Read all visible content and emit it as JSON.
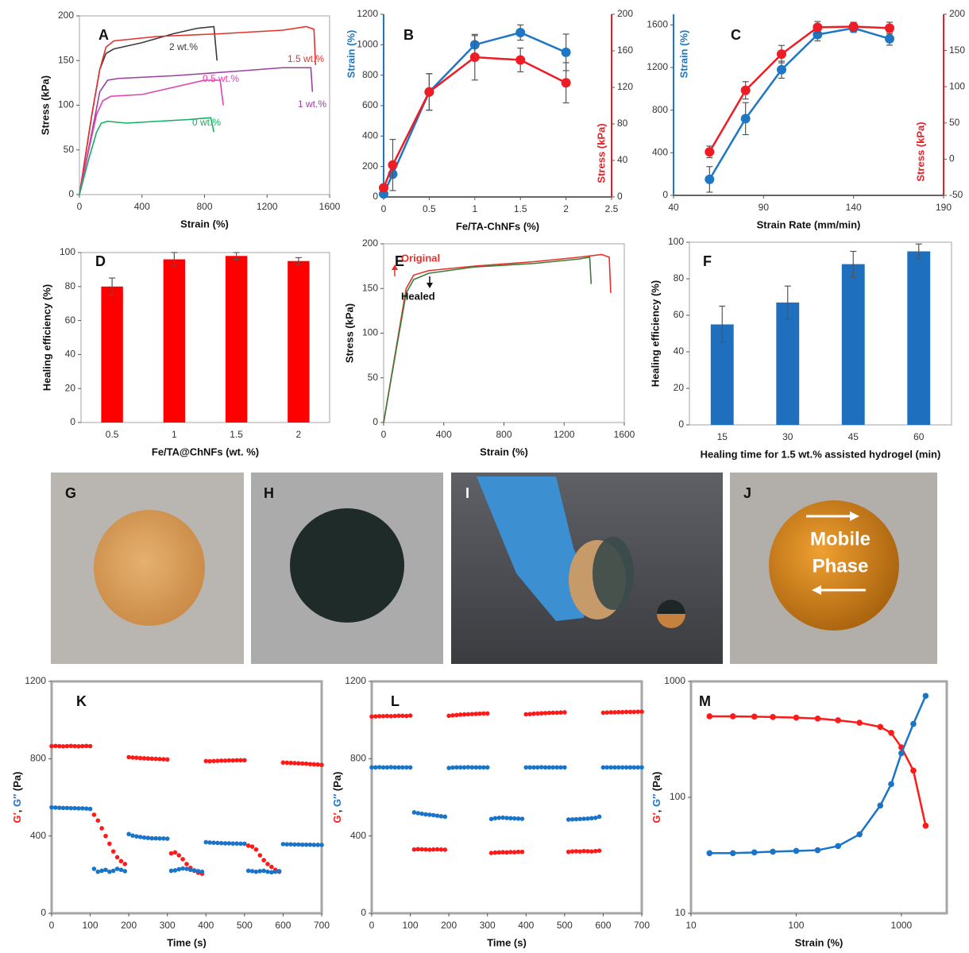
{
  "chart_data": [
    {
      "type": "line",
      "panel": "A",
      "xlabel": "Strain (%)",
      "ylabel": "Stress (kPa)",
      "xlim": [
        0,
        1600
      ],
      "xticks": [
        0,
        400,
        800,
        1200,
        1600
      ],
      "ylim": [
        0,
        200
      ],
      "yticks": [
        0,
        50,
        100,
        150,
        200
      ],
      "series": [
        {
          "name": "2 wt.%",
          "color": "#3a3a3a",
          "x": [
            0,
            80,
            130,
            170,
            220,
            400,
            600,
            750,
            860,
            880
          ],
          "values": [
            0,
            90,
            140,
            158,
            163,
            170,
            180,
            186,
            188,
            150
          ]
        },
        {
          "name": "1.5 wt.%",
          "color": "#e8302a",
          "x": [
            0,
            80,
            130,
            170,
            220,
            500,
            900,
            1300,
            1450,
            1500,
            1510
          ],
          "values": [
            0,
            90,
            140,
            165,
            172,
            177,
            180,
            184,
            188,
            185,
            145
          ]
        },
        {
          "name": "1 wt.%",
          "color": "#9b3fa0",
          "x": [
            0,
            80,
            130,
            180,
            250,
            600,
            1000,
            1300,
            1480,
            1490
          ],
          "values": [
            0,
            70,
            115,
            128,
            130,
            133,
            138,
            142,
            142,
            115
          ]
        },
        {
          "name": "0.5 wt.%",
          "color": "#e040b0",
          "x": [
            0,
            60,
            110,
            150,
            200,
            400,
            600,
            800,
            900,
            920
          ],
          "values": [
            0,
            50,
            90,
            105,
            110,
            112,
            120,
            128,
            128,
            100
          ]
        },
        {
          "name": "0 wt.%",
          "color": "#10b060",
          "x": [
            0,
            60,
            110,
            140,
            180,
            300,
            500,
            700,
            840,
            860
          ],
          "values": [
            0,
            40,
            70,
            80,
            82,
            80,
            82,
            84,
            86,
            70
          ]
        }
      ]
    },
    {
      "type": "line",
      "panel": "B",
      "markers": true,
      "xlabel": "Fe/TA-ChNFs (%)",
      "ylabel": "Strain (%)",
      "y2label": "Stress (kPa)",
      "xlim": [
        0,
        2.5
      ],
      "xticks": [
        0,
        0.5,
        1,
        1.5,
        2,
        2.5
      ],
      "ylim": [
        0,
        1200
      ],
      "yticks": [
        0,
        200,
        400,
        600,
        800,
        1000,
        1200
      ],
      "y2lim": [
        0,
        200
      ],
      "y2ticks": [
        0,
        40,
        80,
        120,
        160,
        200
      ],
      "x": [
        0,
        0.1,
        0.5,
        1,
        1.5,
        2
      ],
      "series": [
        {
          "color": "#1f77c4",
          "values": [
            20,
            150,
            690,
            1000,
            1080,
            950
          ],
          "errors": [
            0,
            0,
            120,
            60,
            50,
            120
          ]
        },
        {
          "color": "#ee1c24",
          "axis": "y2",
          "values": [
            10,
            35,
            115,
            153,
            150,
            125
          ],
          "errors": [
            0,
            28,
            20,
            25,
            13,
            22
          ]
        }
      ]
    },
    {
      "type": "line",
      "panel": "C",
      "markers": true,
      "xlabel": "Strain Rate (mm/min)",
      "ylabel": "Strain (%)",
      "y2label": "Stress (kPa)",
      "xlim": [
        40,
        190
      ],
      "xticks": [
        40,
        90,
        140,
        190
      ],
      "ylim": [
        0,
        1700
      ],
      "yticks": [
        0,
        400,
        800,
        1200,
        1600
      ],
      "y2lim": [
        -50,
        200
      ],
      "y2ticks": [
        -50,
        0,
        50,
        100,
        150,
        200
      ],
      "x": [
        60,
        80,
        100,
        120,
        140,
        160
      ],
      "series": [
        {
          "color": "#1f77c4",
          "values": [
            150,
            720,
            1180,
            1510,
            1570,
            1470
          ],
          "errors": [
            120,
            150,
            80,
            60,
            40,
            60
          ]
        },
        {
          "color": "#ee1c24",
          "axis": "y2",
          "values": [
            10,
            95,
            145,
            182,
            183,
            181
          ],
          "errors": [
            8,
            12,
            12,
            8,
            6,
            8
          ]
        }
      ]
    },
    {
      "type": "bar",
      "panel": "D",
      "xlabel": "Fe/TA@ChNFs (wt. %)",
      "ylabel": "Healing efficiency (%)",
      "categories": [
        "0.5",
        "1",
        "1.5",
        "2"
      ],
      "values": [
        80,
        96,
        98,
        95
      ],
      "errors": [
        5,
        4,
        2,
        2
      ],
      "color": "#ff0000",
      "ylim": [
        0,
        100
      ],
      "yticks": [
        0,
        20,
        40,
        60,
        80,
        100
      ]
    },
    {
      "type": "line",
      "panel": "E",
      "xlabel": "Strain (%)",
      "ylabel": "Stress (kPa)",
      "xlim": [
        0,
        1600
      ],
      "xticks": [
        0,
        400,
        800,
        1200,
        1600
      ],
      "ylim": [
        0,
        200
      ],
      "yticks": [
        0,
        50,
        100,
        150,
        200
      ],
      "series": [
        {
          "name": "Original",
          "color": "#e8302a",
          "x": [
            0,
            80,
            150,
            200,
            300,
            600,
            1000,
            1300,
            1450,
            1500,
            1510
          ],
          "values": [
            0,
            80,
            150,
            165,
            170,
            175,
            180,
            185,
            188,
            185,
            145
          ]
        },
        {
          "name": "Healed",
          "color": "#3a7d3a",
          "x": [
            0,
            80,
            150,
            200,
            300,
            600,
            1000,
            1300,
            1370,
            1380
          ],
          "values": [
            0,
            78,
            145,
            160,
            167,
            174,
            178,
            183,
            185,
            155
          ]
        }
      ]
    },
    {
      "type": "bar",
      "panel": "F",
      "xlabel": "Healing time for 1.5 wt.% assisted hydrogel (min)",
      "ylabel": "Healing efficiency (%)",
      "categories": [
        "15",
        "30",
        "45",
        "60"
      ],
      "values": [
        55,
        67,
        88,
        95
      ],
      "errors": [
        10,
        9,
        7,
        4
      ],
      "color": "#1f6fbf",
      "ylim": [
        0,
        100
      ],
      "yticks": [
        0,
        20,
        40,
        60,
        80,
        100
      ]
    },
    {
      "type": "scatter",
      "panel": "K",
      "xlabel": "Time (s)",
      "ylabel": [
        "G′",
        ", ",
        "G″",
        " (Pa)"
      ],
      "xlim": [
        0,
        700
      ],
      "xticks": [
        0,
        100,
        200,
        300,
        400,
        500,
        600,
        700
      ],
      "ylim": [
        0,
        1200
      ],
      "yticks": [
        0,
        400,
        800,
        1200
      ],
      "x": [
        0,
        10,
        20,
        30,
        40,
        50,
        60,
        70,
        80,
        90,
        100,
        110,
        120,
        130,
        140,
        150,
        160,
        170,
        180,
        190,
        200,
        210,
        220,
        230,
        240,
        250,
        260,
        270,
        280,
        290,
        300,
        310,
        320,
        330,
        340,
        350,
        360,
        370,
        380,
        390,
        400,
        410,
        420,
        430,
        440,
        450,
        460,
        470,
        480,
        490,
        500,
        510,
        520,
        530,
        540,
        550,
        560,
        570,
        580,
        590,
        600,
        610,
        620,
        630,
        640,
        650,
        660,
        670,
        680,
        690,
        700
      ],
      "series": [
        {
          "color": "#ff1a1a",
          "values": [
            865,
            866,
            865,
            864,
            865,
            866,
            865,
            864,
            865,
            866,
            865,
            510,
            480,
            440,
            400,
            360,
            320,
            290,
            270,
            255,
            808,
            806,
            805,
            803,
            802,
            801,
            800,
            799,
            798,
            797,
            796,
            310,
            315,
            300,
            280,
            255,
            235,
            220,
            210,
            205,
            788,
            787,
            788,
            789,
            790,
            790,
            791,
            791,
            792,
            792,
            792,
            350,
            345,
            330,
            300,
            275,
            255,
            240,
            225,
            215,
            780,
            779,
            778,
            777,
            776,
            775,
            774,
            772,
            771,
            770,
            768
          ]
        },
        {
          "color": "#1a75c8",
          "values": [
            548,
            547,
            546,
            545,
            545,
            544,
            544,
            543,
            543,
            542,
            540,
            230,
            215,
            220,
            225,
            215,
            220,
            230,
            225,
            218,
            410,
            402,
            398,
            395,
            392,
            390,
            388,
            388,
            387,
            387,
            386,
            220,
            222,
            228,
            232,
            230,
            225,
            222,
            218,
            215,
            368,
            366,
            365,
            364,
            363,
            362,
            362,
            361,
            361,
            360,
            360,
            220,
            218,
            215,
            218,
            220,
            215,
            212,
            215,
            218,
            358,
            357,
            357,
            356,
            356,
            355,
            355,
            355,
            354,
            354,
            354
          ]
        }
      ]
    },
    {
      "type": "scatter",
      "panel": "L",
      "xlabel": "Time (s)",
      "ylabel": [
        "G′",
        ", ",
        "G″",
        " (Pa)"
      ],
      "xlim": [
        0,
        700
      ],
      "xticks": [
        0,
        100,
        200,
        300,
        400,
        500,
        600,
        700
      ],
      "ylim": [
        0,
        1200
      ],
      "yticks": [
        0,
        400,
        800,
        1200
      ],
      "x": [
        0,
        10,
        20,
        30,
        40,
        50,
        60,
        70,
        80,
        90,
        100,
        110,
        120,
        130,
        140,
        150,
        160,
        170,
        180,
        190,
        200,
        210,
        220,
        230,
        240,
        250,
        260,
        270,
        280,
        290,
        300,
        310,
        320,
        330,
        340,
        350,
        360,
        370,
        380,
        390,
        400,
        410,
        420,
        430,
        440,
        450,
        460,
        470,
        480,
        490,
        500,
        510,
        520,
        530,
        540,
        550,
        560,
        570,
        580,
        590,
        600,
        610,
        620,
        630,
        640,
        650,
        660,
        670,
        680,
        690,
        700
      ],
      "series": [
        {
          "color": "#ff1a1a",
          "values": [
            1018,
            1019,
            1020,
            1020,
            1021,
            1020,
            1021,
            1022,
            1022,
            1021,
            1023,
            330,
            332,
            331,
            330,
            329,
            330,
            331,
            330,
            329,
            1022,
            1024,
            1026,
            1028,
            1029,
            1030,
            1031,
            1032,
            1033,
            1034,
            1034,
            312,
            314,
            315,
            316,
            315,
            317,
            316,
            318,
            318,
            1030,
            1031,
            1033,
            1034,
            1035,
            1036,
            1037,
            1038,
            1038,
            1039,
            1040,
            318,
            320,
            321,
            320,
            322,
            321,
            320,
            322,
            324,
            1038,
            1039,
            1040,
            1040,
            1041,
            1041,
            1042,
            1042,
            1042,
            1043,
            1043
          ]
        },
        {
          "color": "#1a75c8",
          "values": [
            755,
            755,
            756,
            755,
            755,
            756,
            755,
            755,
            755,
            755,
            755,
            522,
            518,
            515,
            512,
            510,
            508,
            505,
            502,
            500,
            752,
            754,
            755,
            755,
            755,
            756,
            755,
            755,
            755,
            755,
            755,
            488,
            492,
            494,
            495,
            493,
            492,
            491,
            490,
            489,
            755,
            755,
            755,
            755,
            756,
            755,
            755,
            755,
            755,
            755,
            755,
            485,
            486,
            487,
            488,
            489,
            490,
            492,
            494,
            500,
            755,
            755,
            755,
            755,
            755,
            755,
            755,
            755,
            755,
            755,
            755
          ]
        }
      ]
    },
    {
      "type": "line",
      "panel": "M",
      "markers": true,
      "xlog": true,
      "ylog": true,
      "xlabel": "Strain (%)",
      "ylabel": [
        "G′",
        ", ",
        "G″",
        " (Pa)"
      ],
      "xlim": [
        10,
        2700
      ],
      "xticks": [
        10,
        100,
        1000
      ],
      "ylim": [
        10,
        1000
      ],
      "yticks": [
        10,
        100,
        1000
      ],
      "x": [
        15,
        25,
        40,
        60,
        100,
        160,
        250,
        400,
        630,
        800,
        1000,
        1300,
        1700
      ],
      "series": [
        {
          "color": "#ff1a1a",
          "values": [
            500,
            500,
            497,
            493,
            487,
            478,
            462,
            440,
            405,
            360,
            270,
            170,
            57
          ]
        },
        {
          "color": "#1a75c8",
          "values": [
            33,
            33,
            33.5,
            34,
            34.5,
            35,
            38,
            48,
            85,
            130,
            240,
            430,
            750
          ]
        }
      ]
    }
  ],
  "photos": [
    {
      "label": "G"
    },
    {
      "label": "H"
    },
    {
      "label": "I"
    },
    {
      "label": "J",
      "annotation": [
        "Mobile",
        "Phase"
      ]
    }
  ]
}
